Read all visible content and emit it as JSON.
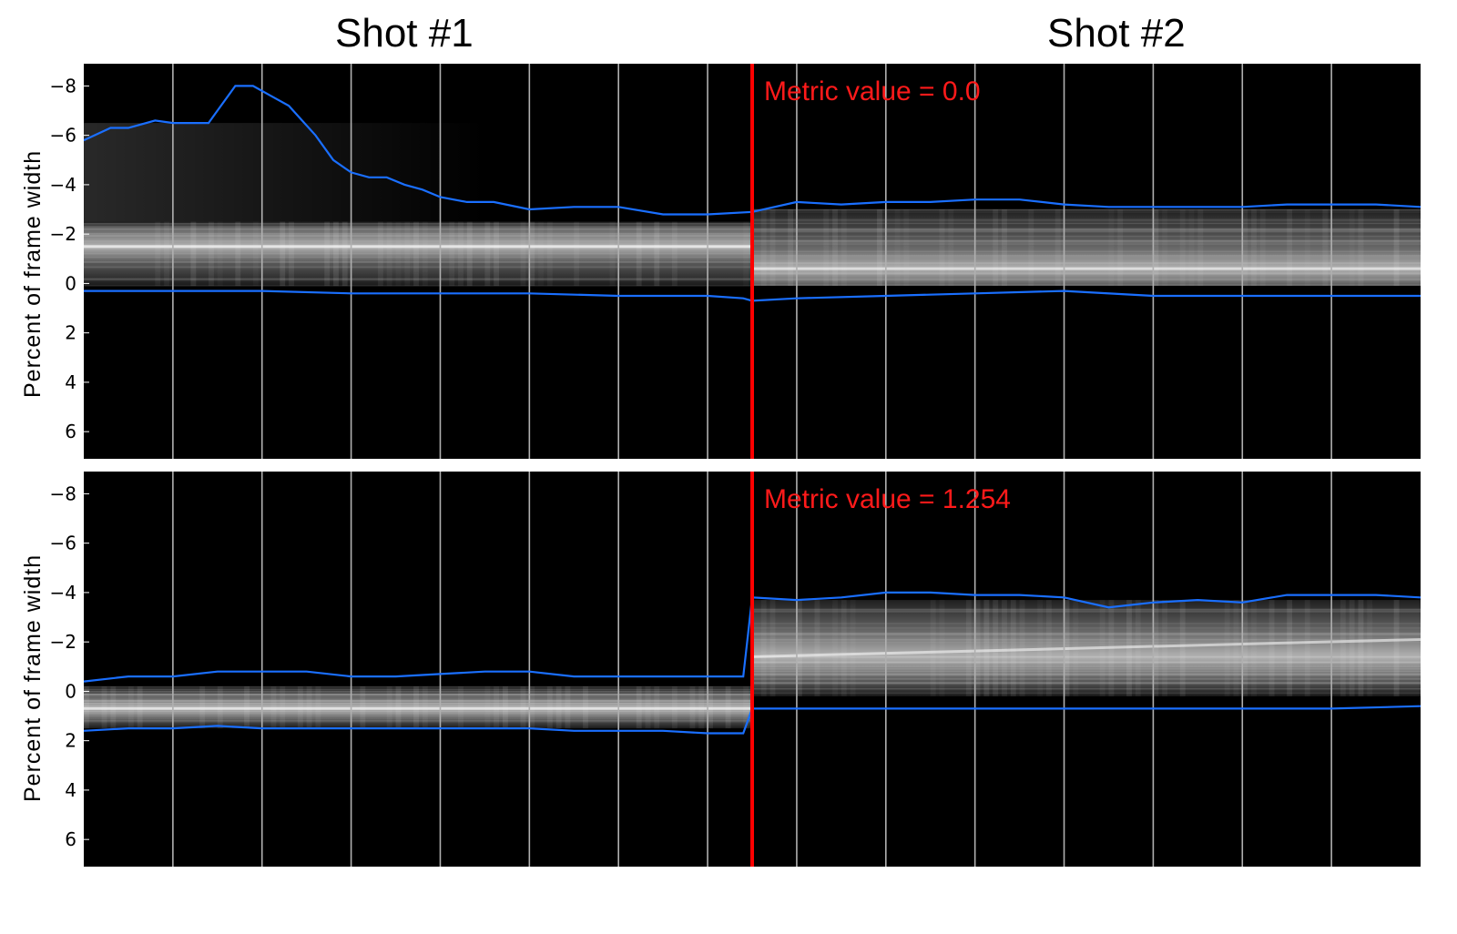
{
  "shot_titles": [
    "Shot #1",
    "Shot #2"
  ],
  "colors": {
    "background": "#000000",
    "vline": "#b0b0b0",
    "boundary": "#ff0000",
    "envelope": "#1a6fff",
    "metric_text": "#ff1a1a"
  },
  "chart_data": [
    {
      "type": "heatmap",
      "ylabel": "Percent of frame width",
      "yticks": [
        -8,
        -6,
        -4,
        -2,
        0,
        2,
        4,
        6
      ],
      "ylim": [
        -8.9,
        7.1
      ],
      "y_inverted": true,
      "annotation": "Metric value = 0.0",
      "frames": [
        0,
        150
      ],
      "boundary_frame": 75,
      "frame_divisions": [
        10,
        20,
        30,
        40,
        50,
        60,
        70,
        80,
        90,
        100,
        110,
        120,
        130,
        140
      ],
      "upper_envelope": {
        "x": [
          0,
          3,
          5,
          8,
          10,
          12,
          14,
          15,
          17,
          19,
          21,
          23,
          24,
          26,
          28,
          30,
          32,
          34,
          36,
          38,
          40,
          43,
          46,
          50,
          55,
          60,
          65,
          70,
          75,
          80,
          85,
          90,
          95,
          100,
          105,
          110,
          115,
          120,
          125,
          130,
          135,
          140,
          145,
          150
        ],
        "y": [
          -5.8,
          -6.3,
          -6.3,
          -6.6,
          -6.5,
          -6.5,
          -6.5,
          -7.0,
          -8.0,
          -8.0,
          -7.6,
          -7.2,
          -6.8,
          -6.0,
          -5.0,
          -4.5,
          -4.3,
          -4.3,
          -4.0,
          -3.8,
          -3.5,
          -3.3,
          -3.3,
          -3.0,
          -3.1,
          -3.1,
          -2.8,
          -2.8,
          -2.9,
          -3.3,
          -3.2,
          -3.3,
          -3.3,
          -3.4,
          -3.4,
          -3.2,
          -3.1,
          -3.1,
          -3.1,
          -3.1,
          -3.2,
          -3.2,
          -3.2,
          -3.1
        ]
      },
      "lower_envelope": {
        "x": [
          0,
          10,
          20,
          30,
          40,
          50,
          60,
          70,
          74,
          75,
          80,
          90,
          100,
          110,
          120,
          130,
          140,
          150
        ],
        "y": [
          0.3,
          0.3,
          0.3,
          0.4,
          0.4,
          0.4,
          0.5,
          0.5,
          0.6,
          0.7,
          0.6,
          0.5,
          0.4,
          0.3,
          0.5,
          0.5,
          0.5,
          0.5
        ]
      },
      "intensity_band": [
        {
          "from_frame": 0,
          "to_frame": 75,
          "top": -2.5,
          "bottom": 0.1,
          "peak": -1.5
        },
        {
          "from_frame": 75,
          "to_frame": 150,
          "top": -3.0,
          "bottom": 0.1,
          "peak": -0.6
        }
      ],
      "faint_region": {
        "from_frame": 0,
        "to_frame": 45,
        "top": -6.5,
        "bottom": -2.5
      }
    },
    {
      "type": "heatmap",
      "ylabel": "Percent of frame width",
      "yticks": [
        -8,
        -6,
        -4,
        -2,
        0,
        2,
        4,
        6
      ],
      "ylim": [
        -8.9,
        7.1
      ],
      "y_inverted": true,
      "annotation": "Metric value = 1.254",
      "frames": [
        0,
        150
      ],
      "boundary_frame": 75,
      "frame_divisions": [
        10,
        20,
        30,
        40,
        50,
        60,
        70,
        80,
        90,
        100,
        110,
        120,
        130,
        140
      ],
      "upper_envelope": {
        "x": [
          0,
          5,
          10,
          15,
          20,
          25,
          30,
          35,
          40,
          45,
          50,
          55,
          60,
          65,
          70,
          74,
          75,
          80,
          85,
          90,
          95,
          100,
          105,
          110,
          115,
          120,
          125,
          130,
          135,
          140,
          145,
          150
        ],
        "y": [
          -0.4,
          -0.6,
          -0.6,
          -0.8,
          -0.8,
          -0.8,
          -0.6,
          -0.6,
          -0.7,
          -0.8,
          -0.8,
          -0.6,
          -0.6,
          -0.6,
          -0.6,
          -0.6,
          -3.8,
          -3.7,
          -3.8,
          -4.0,
          -4.0,
          -3.9,
          -3.9,
          -3.8,
          -3.4,
          -3.6,
          -3.7,
          -3.6,
          -3.9,
          -3.9,
          -3.9,
          -3.8
        ]
      },
      "lower_envelope": {
        "x": [
          0,
          5,
          10,
          15,
          20,
          25,
          30,
          35,
          40,
          45,
          50,
          55,
          60,
          65,
          70,
          74,
          75,
          80,
          90,
          100,
          110,
          120,
          130,
          140,
          150
        ],
        "y": [
          1.6,
          1.5,
          1.5,
          1.4,
          1.5,
          1.5,
          1.5,
          1.5,
          1.5,
          1.5,
          1.5,
          1.6,
          1.6,
          1.6,
          1.7,
          1.7,
          0.7,
          0.7,
          0.7,
          0.7,
          0.7,
          0.7,
          0.7,
          0.7,
          0.6
        ]
      },
      "intensity_band": [
        {
          "from_frame": 0,
          "to_frame": 75,
          "top": -0.2,
          "bottom": 1.5,
          "peak": 0.7
        },
        {
          "from_frame": 75,
          "to_frame": 150,
          "top": -3.7,
          "bottom": 0.2,
          "peak": -1.4,
          "peak_end": -2.1
        }
      ],
      "faint_region": null
    }
  ]
}
